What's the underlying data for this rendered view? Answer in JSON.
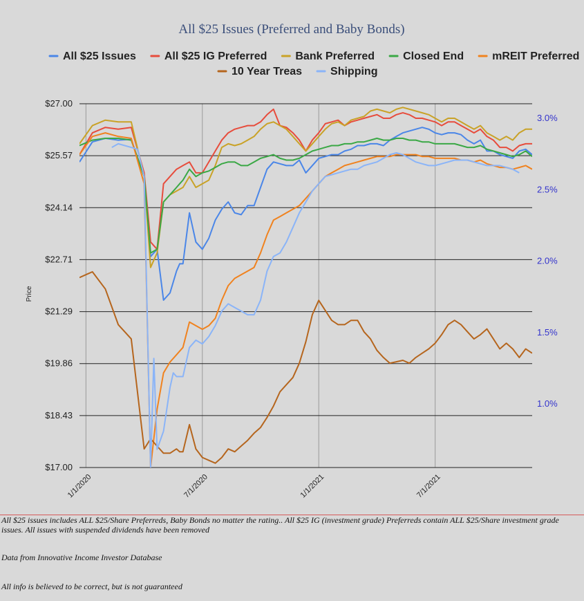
{
  "chart_data": {
    "type": "line",
    "title": "All $25 Issues (Preferred and Baby Bonds)",
    "ylabel": "Price",
    "ylim": [
      17.0,
      27.0
    ],
    "y_ticks": [
      "$27.00",
      "$25.57",
      "$24.14",
      "$22.71",
      "$21.29",
      "$19.86",
      "$18.43",
      "$17.00"
    ],
    "y2lim": [
      0.55,
      3.1
    ],
    "y2_ticks": [
      "3.0%",
      "2.5%",
      "2.0%",
      "1.5%",
      "1.0%"
    ],
    "x_ticks": [
      "1/1/2020",
      "7/1/2020",
      "1/1/2021",
      "7/1/2021"
    ],
    "legend_position": "top",
    "grid": "horizontal",
    "series": [
      {
        "name": "All $25 Issues",
        "color": "#4a86e8",
        "axis": "left",
        "t": [
          0,
          2,
          4,
          6,
          8,
          10,
          11,
          12,
          13,
          14,
          15,
          15.5,
          16,
          17,
          18,
          19,
          20,
          21,
          22,
          23,
          24,
          25,
          26,
          27,
          28,
          29,
          30,
          31,
          32,
          33,
          34,
          35,
          36,
          37,
          38,
          39,
          40,
          41,
          42,
          43,
          44,
          45,
          46,
          47,
          48,
          49,
          50,
          51,
          52,
          53,
          54,
          55,
          56,
          57,
          58,
          59,
          60,
          61,
          62,
          63,
          64,
          65,
          66,
          67,
          68,
          69,
          70
        ],
        "v": [
          25.4,
          25.95,
          26.05,
          26.0,
          26.02,
          25.0,
          22.8,
          23.0,
          21.6,
          21.8,
          22.4,
          22.6,
          22.6,
          24.0,
          23.2,
          23.0,
          23.3,
          23.8,
          24.1,
          24.3,
          24.0,
          23.95,
          24.2,
          24.2,
          24.7,
          25.2,
          25.4,
          25.35,
          25.3,
          25.3,
          25.45,
          25.1,
          25.3,
          25.5,
          25.55,
          25.6,
          25.6,
          25.7,
          25.75,
          25.85,
          25.85,
          25.9,
          25.9,
          25.85,
          26.0,
          26.1,
          26.2,
          26.25,
          26.3,
          26.35,
          26.3,
          26.2,
          26.15,
          26.2,
          26.2,
          26.15,
          26.0,
          25.9,
          26.0,
          25.7,
          25.7,
          25.6,
          25.55,
          25.5,
          25.7,
          25.75,
          25.6
        ]
      },
      {
        "name": "All $25 IG Preferred",
        "color": "#e74c3c",
        "axis": "left",
        "t": [
          0,
          2,
          4,
          6,
          8,
          10,
          11,
          12,
          13,
          14,
          15,
          15.5,
          16,
          17,
          18,
          19,
          20,
          21,
          22,
          23,
          24,
          25,
          26,
          27,
          28,
          29,
          30,
          31,
          32,
          33,
          34,
          35,
          36,
          37,
          38,
          39,
          40,
          41,
          42,
          43,
          44,
          45,
          46,
          47,
          48,
          49,
          50,
          51,
          52,
          53,
          54,
          55,
          56,
          57,
          58,
          59,
          60,
          61,
          62,
          63,
          64,
          65,
          66,
          67,
          68,
          69,
          70
        ],
        "v": [
          25.6,
          26.2,
          26.35,
          26.3,
          26.35,
          25.1,
          23.2,
          23.0,
          24.8,
          25.0,
          25.2,
          25.25,
          25.3,
          25.4,
          25.1,
          25.1,
          25.4,
          25.7,
          26.0,
          26.2,
          26.3,
          26.35,
          26.4,
          26.4,
          26.5,
          26.7,
          26.85,
          26.4,
          26.35,
          26.2,
          26.0,
          25.7,
          26.0,
          26.2,
          26.45,
          26.5,
          26.55,
          26.4,
          26.5,
          26.55,
          26.6,
          26.65,
          26.7,
          26.6,
          26.6,
          26.7,
          26.75,
          26.7,
          26.6,
          26.6,
          26.55,
          26.5,
          26.4,
          26.5,
          26.5,
          26.4,
          26.3,
          26.2,
          26.3,
          26.1,
          26.0,
          25.8,
          25.8,
          25.7,
          25.85,
          25.9,
          25.9
        ]
      },
      {
        "name": "Bank Preferred",
        "color": "#c9a227",
        "axis": "left",
        "t": [
          0,
          2,
          4,
          6,
          8,
          10,
          11,
          12,
          13,
          14,
          15,
          15.5,
          16,
          17,
          18,
          19,
          20,
          21,
          22,
          23,
          24,
          25,
          26,
          27,
          28,
          29,
          30,
          31,
          32,
          33,
          34,
          35,
          36,
          37,
          38,
          39,
          40,
          41,
          42,
          43,
          44,
          45,
          46,
          47,
          48,
          49,
          50,
          51,
          52,
          53,
          54,
          55,
          56,
          57,
          58,
          59,
          60,
          61,
          62,
          63,
          64,
          65,
          66,
          67,
          68,
          69,
          70
        ],
        "v": [
          25.9,
          26.4,
          26.55,
          26.5,
          26.5,
          25.0,
          22.5,
          22.9,
          24.3,
          24.5,
          24.6,
          24.65,
          24.7,
          25.0,
          24.7,
          24.8,
          24.9,
          25.3,
          25.8,
          25.9,
          25.85,
          25.9,
          26.0,
          26.1,
          26.3,
          26.45,
          26.5,
          26.4,
          26.3,
          26.1,
          25.9,
          25.7,
          25.9,
          26.1,
          26.3,
          26.45,
          26.5,
          26.4,
          26.55,
          26.6,
          26.65,
          26.8,
          26.85,
          26.8,
          26.75,
          26.85,
          26.9,
          26.85,
          26.8,
          26.75,
          26.7,
          26.6,
          26.5,
          26.6,
          26.6,
          26.5,
          26.4,
          26.3,
          26.4,
          26.2,
          26.1,
          26.0,
          26.1,
          26.0,
          26.2,
          26.3,
          26.3
        ]
      },
      {
        "name": "Closed End",
        "color": "#3aa845",
        "axis": "left",
        "t": [
          0,
          2,
          4,
          6,
          8,
          10,
          11,
          12,
          13,
          14,
          15,
          15.5,
          16,
          17,
          18,
          19,
          20,
          21,
          22,
          23,
          24,
          25,
          26,
          27,
          28,
          29,
          30,
          31,
          32,
          33,
          34,
          35,
          36,
          37,
          38,
          39,
          40,
          41,
          42,
          43,
          44,
          45,
          46,
          47,
          48,
          49,
          50,
          51,
          52,
          53,
          54,
          55,
          56,
          57,
          58,
          59,
          60,
          61,
          62,
          63,
          64,
          65,
          66,
          67,
          68,
          69,
          70
        ],
        "v": [
          25.85,
          26.0,
          26.05,
          26.05,
          26.0,
          25.0,
          22.9,
          23.0,
          24.3,
          24.5,
          24.7,
          24.8,
          24.9,
          25.2,
          25.0,
          25.1,
          25.15,
          25.25,
          25.35,
          25.4,
          25.4,
          25.3,
          25.3,
          25.4,
          25.5,
          25.55,
          25.6,
          25.5,
          25.45,
          25.45,
          25.5,
          25.6,
          25.7,
          25.75,
          25.8,
          25.85,
          25.85,
          25.9,
          25.9,
          25.95,
          25.95,
          26.0,
          26.05,
          26.0,
          26.0,
          26.05,
          26.05,
          26.0,
          26.0,
          25.95,
          25.95,
          25.9,
          25.9,
          25.9,
          25.9,
          25.85,
          25.8,
          25.8,
          25.85,
          25.75,
          25.7,
          25.65,
          25.6,
          25.55,
          25.6,
          25.7,
          25.55
        ]
      },
      {
        "name": "mREIT Preferred",
        "color": "#f0821e",
        "axis": "left",
        "t": [
          0,
          2,
          4,
          6,
          8,
          10,
          11,
          12,
          13,
          14,
          15,
          15.5,
          16,
          17,
          18,
          19,
          20,
          21,
          22,
          23,
          24,
          25,
          26,
          27,
          28,
          29,
          30,
          31,
          32,
          33,
          34,
          35,
          36,
          37,
          38,
          39,
          40,
          41,
          42,
          43,
          44,
          45,
          46,
          47,
          48,
          49,
          50,
          51,
          52,
          53,
          54,
          55,
          56,
          57,
          58,
          59,
          60,
          61,
          62,
          63,
          64,
          65,
          66,
          67,
          68,
          69,
          70
        ],
        "v": [
          25.6,
          26.1,
          26.2,
          26.1,
          26.05,
          24.8,
          17.0,
          18.6,
          19.6,
          19.9,
          20.1,
          20.2,
          20.3,
          21.0,
          20.9,
          20.8,
          20.9,
          21.1,
          21.6,
          22.0,
          22.2,
          22.3,
          22.4,
          22.5,
          22.9,
          23.4,
          23.8,
          23.9,
          24.0,
          24.1,
          24.2,
          24.4,
          24.6,
          24.8,
          25.0,
          25.1,
          25.2,
          25.3,
          25.35,
          25.4,
          25.45,
          25.5,
          25.55,
          25.55,
          25.55,
          25.6,
          25.6,
          25.6,
          25.6,
          25.55,
          25.55,
          25.5,
          25.5,
          25.5,
          25.5,
          25.45,
          25.45,
          25.4,
          25.45,
          25.35,
          25.3,
          25.25,
          25.25,
          25.2,
          25.25,
          25.3,
          25.2
        ]
      },
      {
        "name": "10 Year Treas",
        "color": "#b5651d",
        "axis": "right",
        "t": [
          0,
          2,
          4,
          6,
          8,
          10,
          11,
          12,
          13,
          14,
          15,
          15.5,
          16,
          17,
          18,
          19,
          20,
          21,
          22,
          23,
          24,
          25,
          26,
          27,
          28,
          29,
          30,
          31,
          32,
          33,
          34,
          35,
          36,
          37,
          38,
          39,
          40,
          41,
          42,
          43,
          44,
          45,
          46,
          47,
          48,
          49,
          50,
          51,
          52,
          53,
          54,
          55,
          56,
          57,
          58,
          59,
          60,
          61,
          62,
          63,
          64,
          65,
          66,
          67,
          68,
          69,
          70
        ],
        "v": [
          1.88,
          1.92,
          1.8,
          1.55,
          1.45,
          0.68,
          0.75,
          0.7,
          0.65,
          0.65,
          0.68,
          0.66,
          0.66,
          0.85,
          0.68,
          0.62,
          0.6,
          0.58,
          0.62,
          0.68,
          0.66,
          0.7,
          0.74,
          0.79,
          0.83,
          0.9,
          0.98,
          1.08,
          1.13,
          1.18,
          1.28,
          1.43,
          1.62,
          1.72,
          1.65,
          1.58,
          1.55,
          1.55,
          1.58,
          1.58,
          1.5,
          1.45,
          1.37,
          1.32,
          1.28,
          1.29,
          1.3,
          1.28,
          1.32,
          1.35,
          1.38,
          1.42,
          1.48,
          1.55,
          1.58,
          1.55,
          1.5,
          1.45,
          1.48,
          1.52,
          1.45,
          1.38,
          1.42,
          1.38,
          1.32,
          1.38,
          1.35
        ]
      },
      {
        "name": "Shipping",
        "color": "#8ab4f8",
        "axis": "left",
        "t": [
          5,
          6,
          7,
          8,
          9,
          10,
          11,
          11.5,
          12,
          13,
          14,
          14.5,
          15,
          15.5,
          16,
          17,
          18,
          19,
          20,
          21,
          22,
          23,
          24,
          25,
          26,
          27,
          28,
          29,
          30,
          31,
          32,
          33,
          34,
          35,
          36,
          37,
          38,
          39,
          40,
          41,
          42,
          43,
          44,
          45,
          46,
          47,
          48,
          49,
          50,
          51,
          52,
          53,
          54,
          55,
          56,
          57,
          58,
          59,
          60,
          61,
          62,
          63,
          64,
          65,
          66,
          67,
          68,
          69,
          70
        ],
        "v": [
          25.8,
          25.9,
          25.85,
          25.8,
          25.75,
          25.0,
          17.0,
          20.0,
          17.5,
          18.0,
          19.2,
          19.6,
          19.5,
          19.5,
          19.5,
          20.3,
          20.5,
          20.4,
          20.6,
          20.9,
          21.3,
          21.5,
          21.4,
          21.3,
          21.2,
          21.2,
          21.6,
          22.4,
          22.8,
          22.9,
          23.2,
          23.6,
          24.0,
          24.3,
          24.6,
          24.8,
          25.0,
          25.05,
          25.1,
          25.15,
          25.2,
          25.2,
          25.3,
          25.35,
          25.4,
          25.5,
          25.6,
          25.65,
          25.6,
          25.5,
          25.4,
          25.35,
          25.3,
          25.3,
          25.35,
          25.4,
          25.45,
          25.45,
          25.45,
          25.4,
          25.35,
          25.3,
          25.3,
          25.3,
          25.25,
          25.2,
          25.1
        ]
      }
    ]
  },
  "notes": {
    "line1": "All $25 issues includes ALL $25/Share Preferreds, Baby Bonds no matter the rating..  All $25 IG (investment grade) Preferreds contain ALL $25/Share investment grade issues.  All issues with suspended dividends have been removed",
    "line2": "Data from Innovative Income Investor Database",
    "line3": "All info is believed to be correct, but is not guaranteed"
  }
}
